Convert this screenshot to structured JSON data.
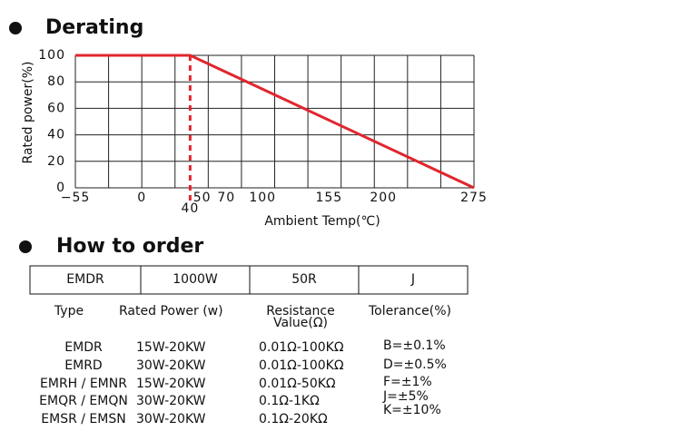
{
  "derating_title": "Derating",
  "chart_data": {
    "type": "line",
    "x": [
      -55,
      40,
      275
    ],
    "series": [
      {
        "color": "#e0262e",
        "values": [
          100,
          100,
          0
        ]
      }
    ],
    "xlim": [
      -55,
      275
    ],
    "ylim": [
      0,
      100
    ],
    "xticks": [
      {
        "value": -55,
        "label": "−55"
      },
      0,
      40,
      50,
      70,
      100,
      155,
      200,
      275
    ],
    "yticks": [
      0,
      20,
      40,
      60,
      80,
      100
    ],
    "grid": true,
    "reference_line": {
      "x": 40,
      "style": "dashed"
    },
    "y_label": "Rated power(%)",
    "x_label": "Ambient Temp(℃)"
  },
  "order_title": "How to order",
  "order_code": [
    "EMDR",
    "1000W",
    "50R",
    "J"
  ],
  "table": {
    "headers": [
      "Type",
      "Rated Power (w)",
      [
        "Resistance",
        "Value(Ω)"
      ],
      "Tolerance(%)"
    ],
    "rows": [
      [
        "EMDR",
        "15W-20KW",
        "0.01Ω-100KΩ"
      ],
      [
        "EMRD",
        "30W-20KW",
        "0.01Ω-100KΩ"
      ],
      [
        "EMRH / EMNR",
        "15W-20KW",
        "0.01Ω-50KΩ"
      ],
      [
        "EMQR / EMQN",
        "30W-20KW",
        "0.1Ω-1KΩ"
      ],
      [
        "EMSR / EMSN",
        "30W-20KW",
        "0.1Ω-20KΩ"
      ]
    ],
    "tolerances": [
      "B=±0.1%",
      "D=±0.5%",
      "F=±1%",
      "J=±5%",
      "K=±10%"
    ]
  }
}
